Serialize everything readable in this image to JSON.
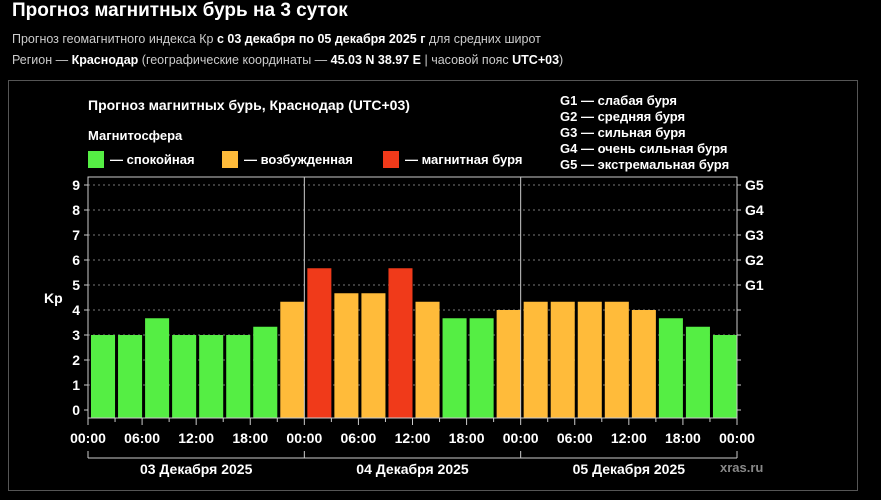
{
  "page": {
    "title": "Прогноз магнитных бурь на 3 суток",
    "line1": {
      "a": "Прогноз геомагнитного индекса Кр ",
      "b": "с 03 декабря по 05 декабря 2025 г",
      "c": " для средних широт"
    },
    "line2": {
      "a": "Регион — ",
      "b": "Краснодар",
      "c": " (географические координаты — ",
      "d": "45.03 N 38.97 E",
      "e": " | часовой пояс ",
      "f": "UTC+03",
      "g": ")"
    }
  },
  "chart_data": {
    "type": "bar",
    "title": "Прогноз магнитных бурь, Краснодар (UTC+03)",
    "legend_title": "Магнитосфера",
    "legend": [
      {
        "label": "— спокойная",
        "color": "#55ee44"
      },
      {
        "label": "— возбужденная",
        "color": "#ffbb3a"
      },
      {
        "label": "— магнитная буря",
        "color": "#f03a1a"
      }
    ],
    "storm_levels": [
      "G1 — слабая буря",
      "G2 — средняя буря",
      "G3 — сильная буря",
      "G4 — очень сильная буря",
      "G5 — экстремальная буря"
    ],
    "ylabel": "Kp",
    "ylim": [
      0,
      9
    ],
    "yticks": [
      "0",
      "1",
      "2",
      "3",
      "4",
      "5",
      "6",
      "7",
      "8",
      "9"
    ],
    "right_ticks": [
      {
        "value": 5,
        "label": "G1"
      },
      {
        "value": 6,
        "label": "G2"
      },
      {
        "value": 7,
        "label": "G3"
      },
      {
        "value": 8,
        "label": "G4"
      },
      {
        "value": 9,
        "label": "G5"
      }
    ],
    "xticks": [
      "00:00",
      "06:00",
      "12:00",
      "18:00",
      "00:00",
      "06:00",
      "12:00",
      "18:00",
      "00:00",
      "06:00",
      "12:00",
      "18:00",
      "00:00"
    ],
    "days": [
      "03 Декабря 2025",
      "04 Декабря 2025",
      "05 Декабря 2025"
    ],
    "interval_hours": 3,
    "values": [
      3,
      3,
      3.67,
      3,
      3,
      3,
      3.33,
      4.33,
      5.67,
      4.67,
      4.67,
      5.67,
      4.33,
      3.67,
      3.67,
      4,
      4.33,
      4.33,
      4.33,
      4.33,
      4,
      3.67,
      3.33,
      3
    ],
    "grid": "horizontal dashed",
    "watermark": "xras.ru"
  }
}
